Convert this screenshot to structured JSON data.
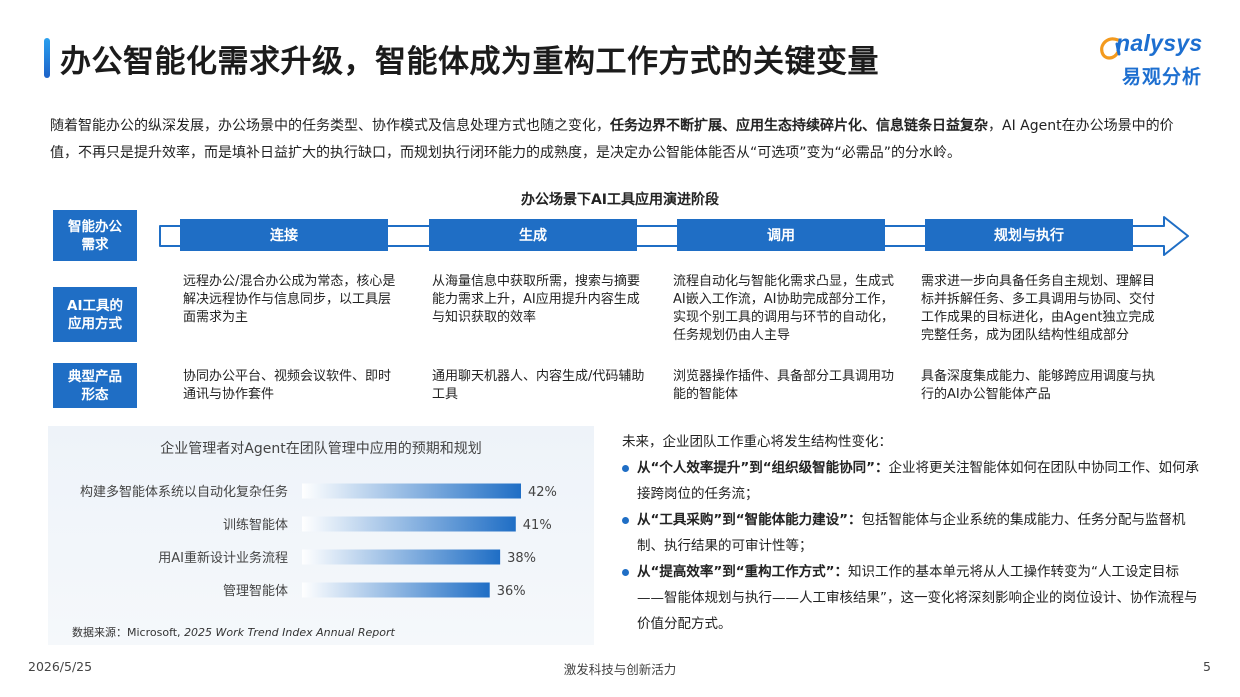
{
  "title": "办公智能化需求升级，智能体成为重构工作方式的关键变量",
  "logo": {
    "en": "nalysys",
    "cn": "易观分析"
  },
  "intro": {
    "p1": "随着智能办公的纵深发展，办公场景中的任务类型、协作模式及信息处理方式也随之变化，",
    "bold": "任务边界不断扩展、应用生态持续碎片化、信息链条日益复杂",
    "p2": "，AI Agent在办公场景中的价值，不再只是提升效率，而是填补日益扩大的执行缺口，而规划执行闭环能力的成熟度，是决定办公智能体能否从“可选项”变为“必需品”的分水岭。"
  },
  "diagram": {
    "title": "办公场景下AI工具应用演进阶段",
    "row_labels": [
      "智能办公\n需求",
      "AI工具的\n应用方式",
      "典型产品\n形态"
    ],
    "stages": [
      "连接",
      "生成",
      "调用",
      "规划与执行"
    ],
    "usage": [
      "远程办公/混合办公成为常态，核心是解决远程协作与信息同步，以工具层面需求为主",
      "从海量信息中获取所需，搜索与摘要能力需求上升，AI应用提升内容生成与知识获取的效率",
      "流程自动化与智能化需求凸显，生成式AI嵌入工作流，AI协助完成部分工作，实现个别工具的调用与环节的自动化，任务规划仍由人主导",
      "需求进一步向具备任务自主规划、理解目标并拆解任务、多工具调用与协同、交付工作成果的目标进化，由Agent独立完成完整任务，成为团队结构性组成部分"
    ],
    "products": [
      "协同办公平台、视频会议软件、即时通讯与协作套件",
      "通用聊天机器人、内容生成/代码辅助工具",
      "浏览器操作插件、具备部分工具调用功能的智能体",
      "具备深度集成能力、能够跨应用调度与执行的AI办公智能体产品"
    ]
  },
  "chart_data": {
    "type": "bar",
    "orientation": "horizontal",
    "title": "企业管理者对Agent在团队管理中应用的预期和规划",
    "categories": [
      "构建多智能体系统以自动化复杂任务",
      "训练智能体",
      "用AI重新设计业务流程",
      "管理智能体"
    ],
    "values": [
      42,
      41,
      38,
      36
    ],
    "value_labels": [
      "42%",
      "41%",
      "38%",
      "36%"
    ],
    "unit": "%",
    "source_prefix": "数据来源：Microsoft, ",
    "source_italic": "2025 Work Trend Index Annual Report",
    "colors": {
      "bar_start": "#ffffff",
      "bar_end": "#1f6ec5"
    }
  },
  "right": {
    "lead": "未来，企业团队工作重心将发生结构性变化：",
    "items": [
      {
        "bold": "从“个人效率提升”到“组织级智能协同”：",
        "text": "企业将更关注智能体如何在团队中协同工作、如何承接跨岗位的任务流；"
      },
      {
        "bold": "从“工具采购”到“智能体能力建设”：",
        "text": "包括智能体与企业系统的集成能力、任务分配与监督机制、执行结果的可审计性等；"
      },
      {
        "bold": "从“提高效率”到“重构工作方式”：",
        "text": "知识工作的基本单元将从人工操作转变为“人工设定目标——智能体规划与执行——人工审核结果”，这一变化将深刻影响企业的岗位设计、协作流程与价值分配方式。"
      }
    ]
  },
  "footer": {
    "date": "2026/5/25",
    "center": "激发科技与创新活力",
    "page": "5"
  },
  "colors": {
    "accent": "#1f6ec5",
    "title_bar": "#2aa0ef"
  }
}
